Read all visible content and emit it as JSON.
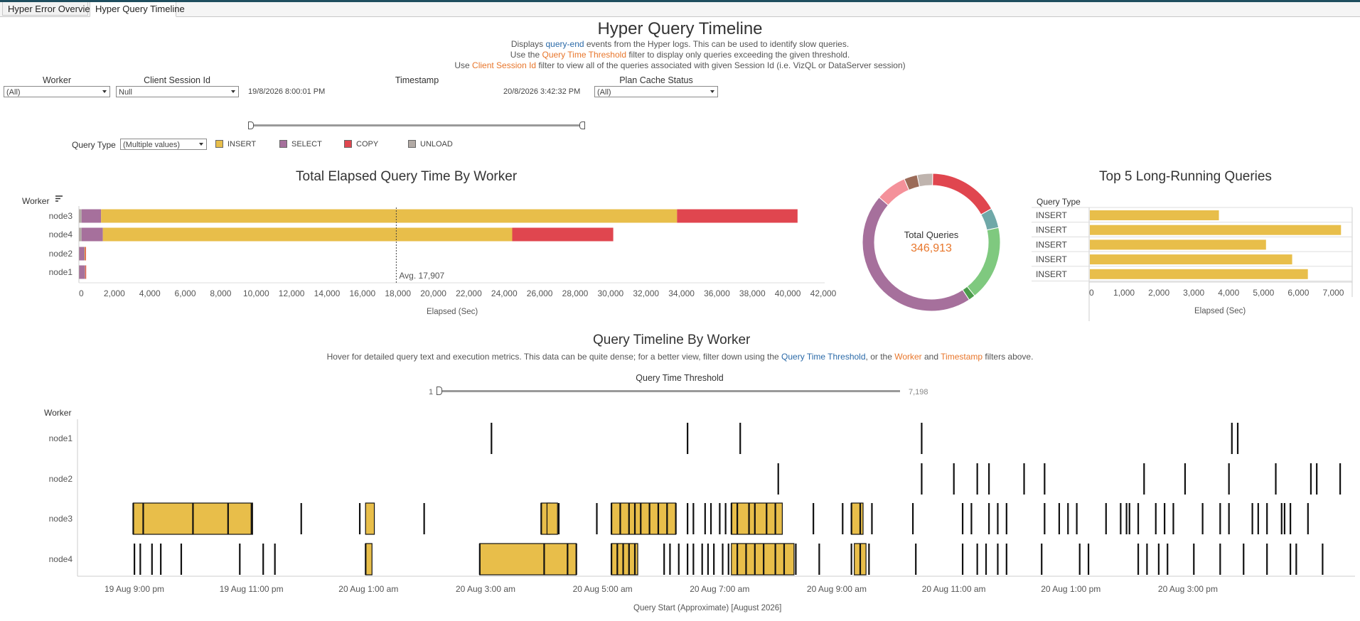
{
  "tabs": [
    {
      "label": "Hyper Error Overview",
      "active": false
    },
    {
      "label": "Hyper Query Timeline",
      "active": true
    }
  ],
  "page": {
    "title": "Hyper Query Timeline",
    "desc1_a": "Displays ",
    "desc1_b": "query-end",
    "desc1_c": " events from the Hyper logs.  This can be used to identify slow queries.",
    "desc2_a": "Use the ",
    "desc2_b": "Query Time Threshold",
    "desc2_c": " filter to display only queries exceeding the given threshold.",
    "desc3_a": "Use ",
    "desc3_b": "Client Session Id",
    "desc3_c": " filter to view all of the queries associated with given Session Id (i.e. VizQL or DataServer session)"
  },
  "filters": {
    "worker": {
      "label": "Worker",
      "value": "(All)"
    },
    "client_session": {
      "label": "Client Session Id",
      "value": "Null"
    },
    "timestamp": {
      "label": "Timestamp",
      "start": "19/8/2026 8:00:01 PM",
      "end": "20/8/2026 3:42:32 PM"
    },
    "plan_cache": {
      "label": "Plan Cache Status",
      "value": "(All)"
    },
    "query_type": {
      "label": "Query Type",
      "value": "(Multiple values)"
    }
  },
  "legend": [
    {
      "label": "INSERT",
      "color": "#e8be4a"
    },
    {
      "label": "SELECT",
      "color": "#a6709c"
    },
    {
      "label": "COPY",
      "color": "#e0464f"
    },
    {
      "label": "UNLOAD",
      "color": "#b2aaa5"
    }
  ],
  "colors": {
    "insert": "#e8be4a",
    "select": "#a6709c",
    "copy": "#e0464f",
    "unload": "#b2aaa5",
    "accent_orange": "#e8762b",
    "accent_blue": "#2b6aa8"
  },
  "chart_data": [
    {
      "type": "bar",
      "title": "Total Elapsed Query Time By Worker",
      "ylabel": "Worker",
      "xlabel": "Elapsed (Sec)",
      "categories": [
        "node3",
        "node4",
        "node2",
        "node1"
      ],
      "series": [
        {
          "name": "UNLOAD",
          "values": [
            150,
            150,
            20,
            20
          ]
        },
        {
          "name": "SELECT",
          "values": [
            1100,
            1200,
            300,
            330
          ]
        },
        {
          "name": "INSERT",
          "values": [
            32500,
            23100,
            40,
            20
          ]
        },
        {
          "name": "COPY",
          "values": [
            6800,
            5700,
            40,
            20
          ]
        }
      ],
      "xlim": [
        0,
        42000
      ],
      "xticks": [
        "0",
        "2,000",
        "4,000",
        "6,000",
        "8,000",
        "10,000",
        "12,000",
        "14,000",
        "16,000",
        "18,000",
        "20,000",
        "22,000",
        "24,000",
        "26,000",
        "28,000",
        "30,000",
        "32,000",
        "34,000",
        "36,000",
        "38,000",
        "40,000",
        "42,000"
      ],
      "reference_line": {
        "label": "Avg. 17,907",
        "value": 17907
      }
    },
    {
      "type": "pie",
      "center_label": "Total Queries",
      "center_value": "346,913",
      "slices": [
        {
          "value": 16,
          "color": "#e0464f"
        },
        {
          "value": 4.5,
          "color": "#6fa8a8"
        },
        {
          "value": 17,
          "color": "#7fc97f"
        },
        {
          "value": 1.5,
          "color": "#4b9b4b"
        },
        {
          "value": 44,
          "color": "#a6709c"
        },
        {
          "value": 7,
          "color": "#f4919a"
        },
        {
          "value": 3,
          "color": "#9b6b58"
        },
        {
          "value": 3.5,
          "color": "#bfb4ae"
        }
      ]
    },
    {
      "type": "bar",
      "title": "Top 5 Long-Running Queries",
      "ylabel": "Query Type",
      "xlabel": "Elapsed (Sec)",
      "categories": [
        "INSERT",
        "INSERT",
        "INSERT",
        "INSERT",
        "INSERT"
      ],
      "values": [
        3700,
        7200,
        5050,
        5800,
        6250
      ],
      "xlim": [
        0,
        7500
      ],
      "xticks": [
        "0",
        "1,000",
        "2,000",
        "3,000",
        "4,000",
        "5,000",
        "6,000",
        "7,000"
      ]
    },
    {
      "type": "scatter",
      "title": "Query Timeline By Worker",
      "ylabel": "Worker",
      "xlabel": "Query Start (Approximate) [August 2026]",
      "categories": [
        "node1",
        "node2",
        "node3",
        "node4"
      ],
      "x_range_hours": [
        -1.0,
        20.8
      ],
      "xticks": [
        "19 Aug 9:00 pm",
        "19 Aug 11:00 pm",
        "20 Aug 1:00 am",
        "20 Aug 3:00 am",
        "20 Aug 5:00 am",
        "20 Aug 7:00 am",
        "20 Aug 9:00 am",
        "20 Aug 11:00 am",
        "20 Aug 1:00 pm",
        "20 Aug 3:00 pm"
      ],
      "blocks": [
        {
          "worker": "node3",
          "start": -0.02,
          "end": 2.02
        },
        {
          "worker": "node3",
          "start": 3.95,
          "end": 4.1
        },
        {
          "worker": "node3",
          "start": 6.95,
          "end": 7.1
        },
        {
          "worker": "node3",
          "start": 7.05,
          "end": 7.23
        },
        {
          "worker": "node3",
          "start": 8.15,
          "end": 9.25
        },
        {
          "worker": "node3",
          "start": 10.2,
          "end": 11.07
        },
        {
          "worker": "node3",
          "start": 12.25,
          "end": 12.45
        },
        {
          "worker": "node4",
          "start": 5.9,
          "end": 7.55
        },
        {
          "worker": "node4",
          "start": 8.15,
          "end": 8.6
        },
        {
          "worker": "node4",
          "start": 10.2,
          "end": 11.27
        },
        {
          "worker": "node4",
          "start": 3.95,
          "end": 4.06
        },
        {
          "worker": "node4",
          "start": 12.3,
          "end": 12.5
        }
      ],
      "ticks": {
        "node1": [
          6.1,
          9.45,
          10.35,
          13.45,
          18.75,
          18.85
        ],
        "node2": [
          11.0,
          13.45,
          14.0,
          14.4,
          14.6,
          15.2,
          15.55,
          17.25,
          17.95,
          18.7,
          19.5,
          20.1,
          20.2,
          20.6
        ],
        "node3": [
          -0.02,
          0.15,
          1.0,
          1.6,
          2.0,
          2.85,
          3.85,
          4.95,
          6.95,
          7.25,
          7.9,
          8.15,
          8.3,
          8.45,
          8.55,
          8.65,
          8.8,
          8.95,
          9.1,
          9.25,
          9.45,
          9.55,
          9.75,
          9.85,
          10.0,
          10.1,
          10.2,
          10.3,
          10.5,
          10.6,
          10.8,
          10.95,
          11.6,
          12.1,
          12.25,
          12.4,
          12.6,
          13.3,
          14.15,
          14.3,
          14.6,
          14.75,
          14.9,
          15.55,
          15.8,
          15.95,
          16.1,
          16.6,
          16.85,
          16.95,
          17.0,
          17.15,
          17.45,
          17.6,
          17.75,
          18.25,
          18.55,
          18.7,
          19.1,
          19.2,
          19.35,
          19.6,
          19.65,
          19.75,
          20.05
        ],
        "node4": [
          0.0,
          0.1,
          0.3,
          0.45,
          0.8,
          1.8,
          2.2,
          2.4,
          3.95,
          5.9,
          7.0,
          7.4,
          7.55,
          8.15,
          8.25,
          8.35,
          8.45,
          8.55,
          9.05,
          9.15,
          9.3,
          9.45,
          9.55,
          9.7,
          9.8,
          9.9,
          10.05,
          10.15,
          10.3,
          10.45,
          10.6,
          10.75,
          10.95,
          11.1,
          11.3,
          11.7,
          12.25,
          12.4,
          12.55,
          13.35,
          14.15,
          14.4,
          14.55,
          14.75,
          14.9,
          15.5,
          16.15,
          16.3,
          17.15,
          17.3,
          17.5,
          17.65,
          18.1,
          18.55,
          18.95,
          19.35,
          19.75,
          19.85,
          20.3
        ]
      }
    }
  ],
  "threshold": {
    "label": "Query Time Threshold",
    "min": "1",
    "max": "7,198"
  },
  "timeline_desc": {
    "a": "Hover for detailed query text and execution metrics.  This data can be quite dense; for a better view, filter down using the ",
    "b": "Query Time Threshold",
    "c": ", or the ",
    "d": "Worker",
    "e": " and ",
    "f": "Timestamp",
    "g": " filters above."
  }
}
